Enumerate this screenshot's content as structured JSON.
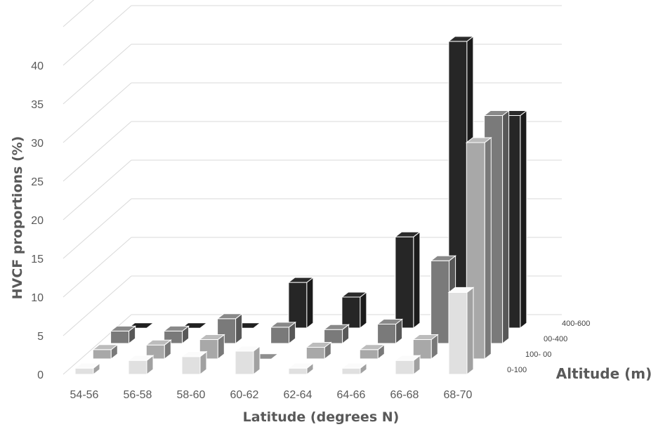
{
  "chart_data": {
    "type": "bar",
    "subtype": "3d-column",
    "categories": [
      "54-56",
      "56-58",
      "58-60",
      "60-62",
      "62-64",
      "64-66",
      "66-68",
      "68-70"
    ],
    "series": [
      {
        "name": "0-100",
        "color": "#e0e0e0",
        "values": [
          0.8,
          1.8,
          2.3,
          3.0,
          0.8,
          0.8,
          1.8,
          10.6
        ]
      },
      {
        "name": "100- 00",
        "color": "#a8a8a8",
        "values": [
          1.2,
          1.8,
          2.5,
          0,
          1.5,
          1.2,
          2.5,
          28.0
        ]
      },
      {
        "name": "00-400",
        "color": "#7a7a7a",
        "values": [
          1.6,
          1.6,
          3.2,
          2.1,
          1.8,
          2.5,
          10.7,
          29.5
        ]
      },
      {
        "name": "400-600",
        "color": "#262626",
        "values": [
          0,
          0,
          0,
          5.9,
          4.0,
          11.8,
          37.1,
          27.5
        ]
      }
    ],
    "xlabel": "Latitude (degrees N)",
    "ylabel": "HVCF proportions (%)",
    "zlabel": "Altitude (m)",
    "ylim": [
      0,
      45
    ],
    "yticks": [
      0,
      5,
      10,
      15,
      20,
      25,
      30,
      35,
      40
    ],
    "grid": true
  }
}
